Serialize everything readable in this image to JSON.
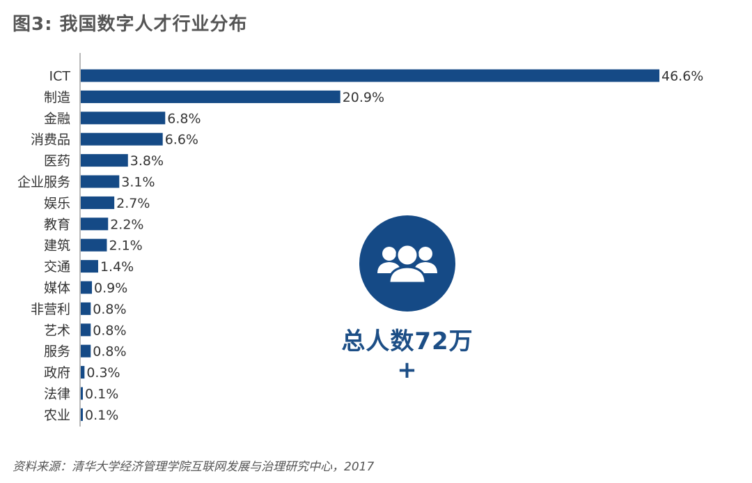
{
  "title": "图3: 我国数字人才行业分布",
  "source": "资料来源：清华大学经济管理学院互联网发展与治理研究中心，2017",
  "badge": {
    "text": "总人数72万+",
    "icon": "people-group-icon"
  },
  "colors": {
    "bar": "#154a86",
    "badge": "#154a86",
    "text": "#333333"
  },
  "chart_data": {
    "type": "bar",
    "orientation": "horizontal",
    "categories": [
      "ICT",
      "制造",
      "金融",
      "消费品",
      "医药",
      "企业服务",
      "娱乐",
      "教育",
      "建筑",
      "交通",
      "媒体",
      "非营利",
      "艺术",
      "服务",
      "政府",
      "法律",
      "农业"
    ],
    "values": [
      46.6,
      20.9,
      6.8,
      6.6,
      3.8,
      3.1,
      2.7,
      2.2,
      2.1,
      1.4,
      0.9,
      0.8,
      0.8,
      0.8,
      0.3,
      0.1,
      0.1
    ],
    "value_labels": [
      "46.6%",
      "20.9%",
      "6.8%",
      "6.6%",
      "3.8%",
      "3.1%",
      "2.7%",
      "2.2%",
      "2.1%",
      "1.4%",
      "0.9%",
      "0.8%",
      "0.8%",
      "0.8%",
      "0.3%",
      "0.1%",
      "0.1%"
    ],
    "unit": "%",
    "xlim": [
      0,
      46.6
    ],
    "grid": false,
    "legend": "none"
  }
}
